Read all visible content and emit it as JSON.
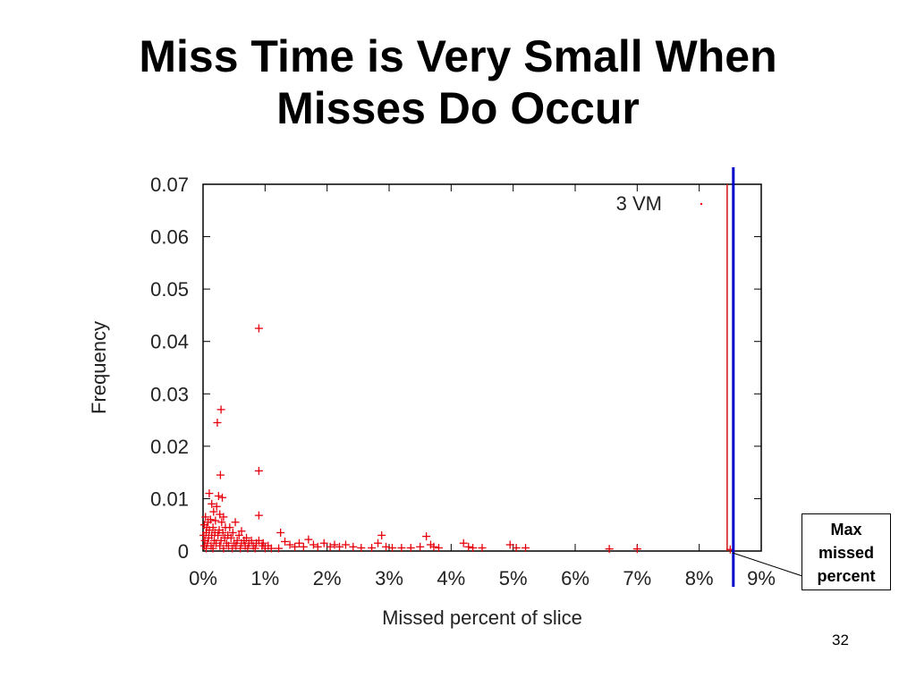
{
  "slide": {
    "title_lines": [
      "Miss Time is Very Small When",
      "Misses Do Occur"
    ],
    "page_number": "32"
  },
  "callout": {
    "lines": [
      "Max",
      "missed",
      "percent"
    ]
  },
  "colors": {
    "points": "#e8000b",
    "max_line_red": "#d11010",
    "max_line_blue": "#0000cc"
  },
  "chart_data": {
    "type": "scatter",
    "xlabel": "Missed percent of slice",
    "ylabel": "Frequency",
    "xlim": [
      0,
      9
    ],
    "ylim": [
      0,
      0.07
    ],
    "x_ticks": [
      0,
      1,
      2,
      3,
      4,
      5,
      6,
      7,
      8,
      9
    ],
    "x_tick_labels": [
      "0%",
      "1%",
      "2%",
      "3%",
      "4%",
      "5%",
      "6%",
      "7%",
      "8%",
      "9%"
    ],
    "y_ticks": [
      0,
      0.01,
      0.02,
      0.03,
      0.04,
      0.05,
      0.06,
      0.07
    ],
    "y_tick_labels": [
      "0",
      "0.01",
      "0.02",
      "0.03",
      "0.04",
      "0.05",
      "0.06",
      "0.07"
    ],
    "legend": "top-right",
    "series": [
      {
        "name": "3 VM",
        "points": [
          [
            0.9,
            0.0425
          ],
          [
            0.29,
            0.027
          ],
          [
            0.23,
            0.0245
          ],
          [
            0.9,
            0.0153
          ],
          [
            0.28,
            0.0145
          ],
          [
            0.25,
            0.0105
          ],
          [
            0.31,
            0.0102
          ],
          [
            0.1,
            0.011
          ],
          [
            0.9,
            0.0068
          ],
          [
            0.14,
            0.009
          ],
          [
            0.22,
            0.0085
          ],
          [
            0.17,
            0.0075
          ],
          [
            0.04,
            0.0065
          ],
          [
            0.27,
            0.007
          ],
          [
            0.33,
            0.0065
          ],
          [
            0.12,
            0.006
          ],
          [
            0.2,
            0.0058
          ],
          [
            0.08,
            0.0055
          ],
          [
            0.3,
            0.0055
          ],
          [
            0.52,
            0.0055
          ],
          [
            0.02,
            0.005
          ],
          [
            0.06,
            0.0045
          ],
          [
            0.16,
            0.0045
          ],
          [
            0.36,
            0.0045
          ],
          [
            0.43,
            0.0045
          ],
          [
            0.26,
            0.004
          ],
          [
            0.1,
            0.004
          ],
          [
            0.62,
            0.0038
          ],
          [
            0.05,
            0.0035
          ],
          [
            0.19,
            0.0035
          ],
          [
            0.32,
            0.0035
          ],
          [
            0.48,
            0.0035
          ],
          [
            0.4,
            0.003
          ],
          [
            0.14,
            0.003
          ],
          [
            0.01,
            0.003
          ],
          [
            0.24,
            0.003
          ],
          [
            0.58,
            0.003
          ],
          [
            0.35,
            0.0025
          ],
          [
            0.09,
            0.0025
          ],
          [
            0.45,
            0.0025
          ],
          [
            0.7,
            0.0025
          ],
          [
            0.03,
            0.002
          ],
          [
            0.18,
            0.002
          ],
          [
            0.29,
            0.002
          ],
          [
            0.55,
            0.002
          ],
          [
            0.66,
            0.002
          ],
          [
            0.78,
            0.002
          ],
          [
            0.9,
            0.002
          ],
          [
            0.07,
            0.0015
          ],
          [
            0.21,
            0.0015
          ],
          [
            0.38,
            0.0015
          ],
          [
            0.5,
            0.0015
          ],
          [
            0.62,
            0.0015
          ],
          [
            0.74,
            0.0015
          ],
          [
            0.86,
            0.0015
          ],
          [
            0.97,
            0.0015
          ],
          [
            0.02,
            0.001
          ],
          [
            0.13,
            0.001
          ],
          [
            0.27,
            0.001
          ],
          [
            0.41,
            0.001
          ],
          [
            0.53,
            0.001
          ],
          [
            0.68,
            0.001
          ],
          [
            0.81,
            0.001
          ],
          [
            0.95,
            0.001
          ],
          [
            1.05,
            0.001
          ],
          [
            0.05,
            0.0005
          ],
          [
            0.16,
            0.0005
          ],
          [
            0.33,
            0.0005
          ],
          [
            0.47,
            0.0005
          ],
          [
            0.6,
            0.0005
          ],
          [
            0.72,
            0.0005
          ],
          [
            0.84,
            0.0005
          ],
          [
            1.0,
            0.0005
          ],
          [
            1.1,
            0.0005
          ],
          [
            1.22,
            0.0005
          ],
          [
            1.25,
            0.0035
          ],
          [
            1.32,
            0.0018
          ],
          [
            1.4,
            0.0012
          ],
          [
            1.48,
            0.0008
          ],
          [
            1.55,
            0.0015
          ],
          [
            1.62,
            0.0008
          ],
          [
            1.7,
            0.0022
          ],
          [
            1.78,
            0.0012
          ],
          [
            1.85,
            0.0008
          ],
          [
            1.95,
            0.0015
          ],
          [
            2.05,
            0.0008
          ],
          [
            2.12,
            0.0012
          ],
          [
            2.2,
            0.0008
          ],
          [
            2.3,
            0.0012
          ],
          [
            2.42,
            0.0008
          ],
          [
            2.55,
            0.0006
          ],
          [
            2.72,
            0.0006
          ],
          [
            2.82,
            0.0015
          ],
          [
            2.88,
            0.003
          ],
          [
            2.95,
            0.0008
          ],
          [
            3.05,
            0.0006
          ],
          [
            3.2,
            0.0006
          ],
          [
            3.35,
            0.0006
          ],
          [
            3.5,
            0.0008
          ],
          [
            3.6,
            0.0028
          ],
          [
            3.67,
            0.0012
          ],
          [
            3.72,
            0.0008
          ],
          [
            3.8,
            0.0006
          ],
          [
            4.2,
            0.0015
          ],
          [
            4.28,
            0.0008
          ],
          [
            4.35,
            0.0006
          ],
          [
            4.5,
            0.0006
          ],
          [
            4.95,
            0.0012
          ],
          [
            5.05,
            0.0006
          ],
          [
            5.2,
            0.0006
          ],
          [
            6.55,
            0.0004
          ],
          [
            7.0,
            0.0004
          ],
          [
            8.5,
            0.0003
          ]
        ]
      }
    ],
    "annotations": [
      {
        "type": "vertical-line",
        "x": 8.45,
        "color": "red"
      },
      {
        "type": "vertical-line",
        "x": 8.55,
        "color": "blue"
      }
    ]
  }
}
